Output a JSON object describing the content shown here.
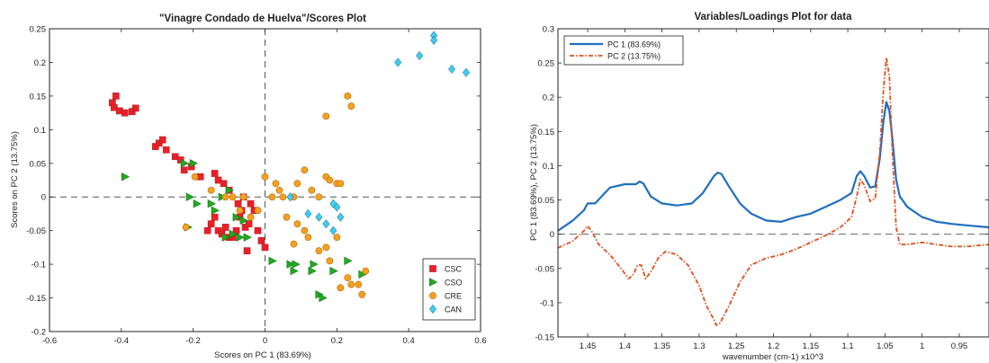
{
  "chart_data": [
    {
      "type": "scatter",
      "title": "\"Vinagre Condado de Huelva\"/Scores Plot",
      "xlabel": "Scores on PC 1 (83.69%)",
      "ylabel": "Scores on PC 2 (13.75%)",
      "xlim": [
        -0.6,
        0.6
      ],
      "ylim": [
        -0.2,
        0.25
      ],
      "xticks": [
        "-0.6",
        "-0.4",
        "-0.2",
        "0",
        "0.2",
        "0.4",
        "0.6"
      ],
      "yticks": [
        "-0.2",
        "-0.15",
        "-0.1",
        "-0.05",
        "0",
        "0.05",
        "0.1",
        "0.15",
        "0.2",
        "0.25"
      ],
      "reference_lines": {
        "x": 0,
        "y": 0,
        "style": "dashed"
      },
      "legend_position": "bottom-right",
      "series": [
        {
          "name": "CSC",
          "marker": "square",
          "color": "#e8202a",
          "points": [
            [
              -0.425,
              0.14
            ],
            [
              -0.415,
              0.15
            ],
            [
              -0.42,
              0.133
            ],
            [
              -0.405,
              0.128
            ],
            [
              -0.39,
              0.125
            ],
            [
              -0.37,
              0.127
            ],
            [
              -0.36,
              0.132
            ],
            [
              -0.305,
              0.075
            ],
            [
              -0.295,
              0.08
            ],
            [
              -0.285,
              0.085
            ],
            [
              -0.275,
              0.07
            ],
            [
              -0.25,
              0.06
            ],
            [
              -0.235,
              0.055
            ],
            [
              -0.225,
              0.04
            ],
            [
              -0.205,
              0.045
            ],
            [
              -0.18,
              0.03
            ],
            [
              -0.14,
              0.035
            ],
            [
              -0.13,
              0.025
            ],
            [
              -0.115,
              0.02
            ],
            [
              -0.1,
              0.01
            ],
            [
              -0.15,
              -0.04
            ],
            [
              -0.14,
              -0.03
            ],
            [
              -0.13,
              -0.05
            ],
            [
              -0.12,
              -0.055
            ],
            [
              -0.11,
              -0.045
            ],
            [
              -0.1,
              -0.06
            ],
            [
              -0.09,
              -0.06
            ],
            [
              -0.08,
              -0.05
            ],
            [
              -0.07,
              -0.03
            ],
            [
              -0.065,
              -0.02
            ],
            [
              -0.055,
              -0.045
            ],
            [
              -0.045,
              -0.04
            ],
            [
              -0.04,
              -0.01
            ],
            [
              -0.03,
              -0.02
            ],
            [
              -0.02,
              -0.05
            ],
            [
              -0.01,
              -0.065
            ],
            [
              0.0,
              -0.075
            ],
            [
              -0.06,
              0.0
            ],
            [
              -0.05,
              -0.08
            ],
            [
              -0.16,
              -0.05
            ],
            [
              -0.075,
              -0.01
            ]
          ]
        },
        {
          "name": "CSO",
          "marker": "triangle",
          "color": "#22aa22",
          "points": [
            [
              -0.39,
              0.03
            ],
            [
              -0.225,
              0.05
            ],
            [
              -0.2,
              0.05
            ],
            [
              -0.21,
              0.0
            ],
            [
              -0.19,
              -0.01
            ],
            [
              -0.215,
              -0.045
            ],
            [
              -0.15,
              -0.01
            ],
            [
              -0.12,
              0.0
            ],
            [
              -0.1,
              0.01
            ],
            [
              -0.08,
              -0.03
            ],
            [
              -0.06,
              -0.035
            ],
            [
              -0.09,
              -0.055
            ],
            [
              -0.07,
              -0.06
            ],
            [
              -0.05,
              -0.06
            ],
            [
              -0.14,
              -0.02
            ],
            [
              0.02,
              -0.095
            ],
            [
              0.07,
              -0.1
            ],
            [
              0.08,
              -0.11
            ],
            [
              0.085,
              -0.1
            ],
            [
              0.13,
              -0.11
            ],
            [
              0.135,
              -0.1
            ],
            [
              0.15,
              -0.145
            ],
            [
              0.16,
              -0.15
            ],
            [
              0.19,
              -0.11
            ],
            [
              0.23,
              -0.095
            ],
            [
              0.27,
              -0.115
            ],
            [
              -0.11,
              -0.06
            ]
          ]
        },
        {
          "name": "CRE",
          "marker": "circle",
          "color": "#f5a020",
          "points": [
            [
              -0.22,
              -0.045
            ],
            [
              -0.195,
              0.03
            ],
            [
              -0.15,
              0.01
            ],
            [
              -0.11,
              0.0
            ],
            [
              -0.09,
              0.0
            ],
            [
              -0.07,
              -0.02
            ],
            [
              -0.06,
              0.0
            ],
            [
              -0.04,
              -0.03
            ],
            [
              -0.02,
              -0.02
            ],
            [
              0.0,
              0.03
            ],
            [
              0.04,
              0.01
            ],
            [
              0.05,
              0.0
            ],
            [
              0.08,
              0.0
            ],
            [
              0.09,
              0.02
            ],
            [
              0.11,
              0.04
            ],
            [
              0.13,
              0.01
            ],
            [
              0.15,
              0.0
            ],
            [
              0.17,
              0.03
            ],
            [
              0.18,
              0.025
            ],
            [
              0.2,
              0.02
            ],
            [
              0.21,
              0.02
            ],
            [
              0.06,
              -0.03
            ],
            [
              0.09,
              -0.04
            ],
            [
              0.11,
              -0.05
            ],
            [
              0.08,
              -0.07
            ],
            [
              0.12,
              -0.06
            ],
            [
              0.15,
              -0.08
            ],
            [
              0.17,
              -0.075
            ],
            [
              0.2,
              -0.06
            ],
            [
              0.23,
              -0.12
            ],
            [
              0.26,
              -0.13
            ],
            [
              0.27,
              -0.145
            ],
            [
              0.28,
              -0.11
            ],
            [
              0.24,
              -0.13
            ],
            [
              0.21,
              -0.135
            ],
            [
              0.18,
              -0.095
            ],
            [
              0.23,
              0.15
            ],
            [
              0.24,
              0.135
            ],
            [
              0.17,
              0.12
            ],
            [
              0.03,
              0.02
            ],
            [
              0.02,
              0.0
            ]
          ]
        },
        {
          "name": "CAN",
          "marker": "diamond",
          "color": "#44ccee",
          "points": [
            [
              0.47,
              0.24
            ],
            [
              0.47,
              0.233
            ],
            [
              0.43,
              0.21
            ],
            [
              0.37,
              0.2
            ],
            [
              0.52,
              0.19
            ],
            [
              0.56,
              0.185
            ],
            [
              0.07,
              0.0
            ],
            [
              0.12,
              -0.025
            ],
            [
              0.15,
              -0.03
            ],
            [
              0.17,
              -0.04
            ],
            [
              0.19,
              -0.01
            ],
            [
              0.2,
              -0.015
            ],
            [
              0.21,
              -0.03
            ],
            [
              0.19,
              -0.05
            ]
          ]
        }
      ]
    },
    {
      "type": "line",
      "title": "Variables/Loadings Plot for data",
      "xlabel": "wavenumber (cm-1) x10^3",
      "ylabel": "PC 1 (83.69%), PC 2 (13.75%)",
      "xlim": [
        1.49,
        0.91
      ],
      "x_reversed": true,
      "ylim": [
        -0.15,
        0.3
      ],
      "xticks": [
        "1.45",
        "1.4",
        "1.35",
        "1.3",
        "1.25",
        "1.2",
        "1.15",
        "1.1",
        "1.05",
        "1",
        "0.95"
      ],
      "yticks": [
        "-0.15",
        "-0.1",
        "-0.05",
        "0",
        "0.05",
        "0.1",
        "0.15",
        "0.2",
        "0.25",
        "0.3"
      ],
      "reference_lines": {
        "y": 0,
        "style": "dashed"
      },
      "legend_position": "top-left",
      "series": [
        {
          "name": "PC 1 (83.69%)",
          "style": "solid",
          "color": "#1f6fc0",
          "points": [
            [
              1.49,
              0.005
            ],
            [
              1.47,
              0.02
            ],
            [
              1.455,
              0.035
            ],
            [
              1.45,
              0.045
            ],
            [
              1.44,
              0.045
            ],
            [
              1.42,
              0.068
            ],
            [
              1.4,
              0.073
            ],
            [
              1.385,
              0.073
            ],
            [
              1.38,
              0.077
            ],
            [
              1.375,
              0.074
            ],
            [
              1.365,
              0.055
            ],
            [
              1.35,
              0.045
            ],
            [
              1.33,
              0.042
            ],
            [
              1.31,
              0.045
            ],
            [
              1.295,
              0.06
            ],
            [
              1.28,
              0.085
            ],
            [
              1.275,
              0.09
            ],
            [
              1.27,
              0.088
            ],
            [
              1.26,
              0.07
            ],
            [
              1.245,
              0.045
            ],
            [
              1.23,
              0.03
            ],
            [
              1.21,
              0.02
            ],
            [
              1.19,
              0.018
            ],
            [
              1.17,
              0.025
            ],
            [
              1.15,
              0.03
            ],
            [
              1.13,
              0.04
            ],
            [
              1.11,
              0.05
            ],
            [
              1.095,
              0.06
            ],
            [
              1.088,
              0.085
            ],
            [
              1.083,
              0.092
            ],
            [
              1.078,
              0.085
            ],
            [
              1.07,
              0.068
            ],
            [
              1.063,
              0.07
            ],
            [
              1.057,
              0.11
            ],
            [
              1.052,
              0.165
            ],
            [
              1.048,
              0.193
            ],
            [
              1.044,
              0.18
            ],
            [
              1.04,
              0.14
            ],
            [
              1.035,
              0.08
            ],
            [
              1.03,
              0.055
            ],
            [
              1.02,
              0.04
            ],
            [
              1.0,
              0.025
            ],
            [
              0.98,
              0.018
            ],
            [
              0.96,
              0.015
            ],
            [
              0.94,
              0.013
            ],
            [
              0.91,
              0.01
            ]
          ]
        },
        {
          "name": "PC 2 (13.75%)",
          "style": "dash-dot",
          "color": "#e0501a",
          "points": [
            [
              1.49,
              -0.02
            ],
            [
              1.47,
              -0.01
            ],
            [
              1.455,
              0.005
            ],
            [
              1.45,
              0.012
            ],
            [
              1.445,
              0.005
            ],
            [
              1.435,
              -0.015
            ],
            [
              1.42,
              -0.03
            ],
            [
              1.405,
              -0.05
            ],
            [
              1.395,
              -0.065
            ],
            [
              1.388,
              -0.058
            ],
            [
              1.383,
              -0.045
            ],
            [
              1.378,
              -0.045
            ],
            [
              1.372,
              -0.065
            ],
            [
              1.365,
              -0.055
            ],
            [
              1.355,
              -0.035
            ],
            [
              1.345,
              -0.025
            ],
            [
              1.33,
              -0.03
            ],
            [
              1.315,
              -0.045
            ],
            [
              1.3,
              -0.075
            ],
            [
              1.29,
              -0.105
            ],
            [
              1.28,
              -0.125
            ],
            [
              1.277,
              -0.133
            ],
            [
              1.272,
              -0.13
            ],
            [
              1.26,
              -0.105
            ],
            [
              1.245,
              -0.07
            ],
            [
              1.23,
              -0.045
            ],
            [
              1.21,
              -0.035
            ],
            [
              1.19,
              -0.03
            ],
            [
              1.17,
              -0.022
            ],
            [
              1.15,
              -0.012
            ],
            [
              1.13,
              -0.002
            ],
            [
              1.11,
              0.01
            ],
            [
              1.095,
              0.025
            ],
            [
              1.088,
              0.055
            ],
            [
              1.083,
              0.08
            ],
            [
              1.078,
              0.072
            ],
            [
              1.07,
              0.048
            ],
            [
              1.063,
              0.052
            ],
            [
              1.057,
              0.12
            ],
            [
              1.052,
              0.21
            ],
            [
              1.048,
              0.258
            ],
            [
              1.044,
              0.23
            ],
            [
              1.04,
              0.12
            ],
            [
              1.035,
              0.01
            ],
            [
              1.03,
              -0.015
            ],
            [
              1.02,
              -0.015
            ],
            [
              1.0,
              -0.012
            ],
            [
              0.98,
              -0.015
            ],
            [
              0.96,
              -0.018
            ],
            [
              0.94,
              -0.018
            ],
            [
              0.91,
              -0.015
            ]
          ]
        }
      ]
    }
  ]
}
